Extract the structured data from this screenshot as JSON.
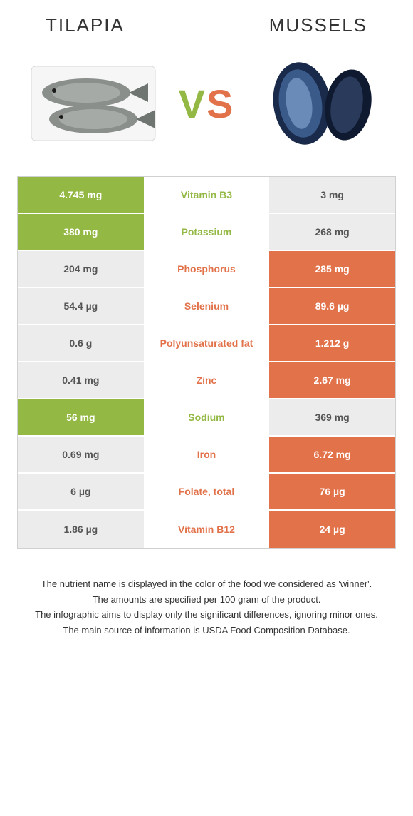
{
  "header": {
    "left_title": "Tilapia",
    "right_title": "Mussels"
  },
  "vs": {
    "v": "V",
    "s": "S"
  },
  "colors": {
    "green": "#93b843",
    "orange": "#e2724a",
    "neutral_bg": "#ececec",
    "neutral_text": "#555555",
    "white": "#ffffff"
  },
  "rows": [
    {
      "nutrient": "Vitamin B3",
      "left": "4.745 mg",
      "right": "3 mg",
      "winner": "left"
    },
    {
      "nutrient": "Potassium",
      "left": "380 mg",
      "right": "268 mg",
      "winner": "left"
    },
    {
      "nutrient": "Phosphorus",
      "left": "204 mg",
      "right": "285 mg",
      "winner": "right"
    },
    {
      "nutrient": "Selenium",
      "left": "54.4 µg",
      "right": "89.6 µg",
      "winner": "right"
    },
    {
      "nutrient": "Polyunsaturated fat",
      "left": "0.6 g",
      "right": "1.212 g",
      "winner": "right"
    },
    {
      "nutrient": "Zinc",
      "left": "0.41 mg",
      "right": "2.67 mg",
      "winner": "right"
    },
    {
      "nutrient": "Sodium",
      "left": "56 mg",
      "right": "369 mg",
      "winner": "left"
    },
    {
      "nutrient": "Iron",
      "left": "0.69 mg",
      "right": "6.72 mg",
      "winner": "right"
    },
    {
      "nutrient": "Folate, total",
      "left": "6 µg",
      "right": "76 µg",
      "winner": "right"
    },
    {
      "nutrient": "Vitamin B12",
      "left": "1.86 µg",
      "right": "24 µg",
      "winner": "right"
    }
  ],
  "footnotes": [
    "The nutrient name is displayed in the color of the food we considered as 'winner'.",
    "The amounts are specified per 100 gram of the product.",
    "The infographic aims to display only the significant differences, ignoring minor ones.",
    "The main source of information is USDA Food Composition Database."
  ]
}
